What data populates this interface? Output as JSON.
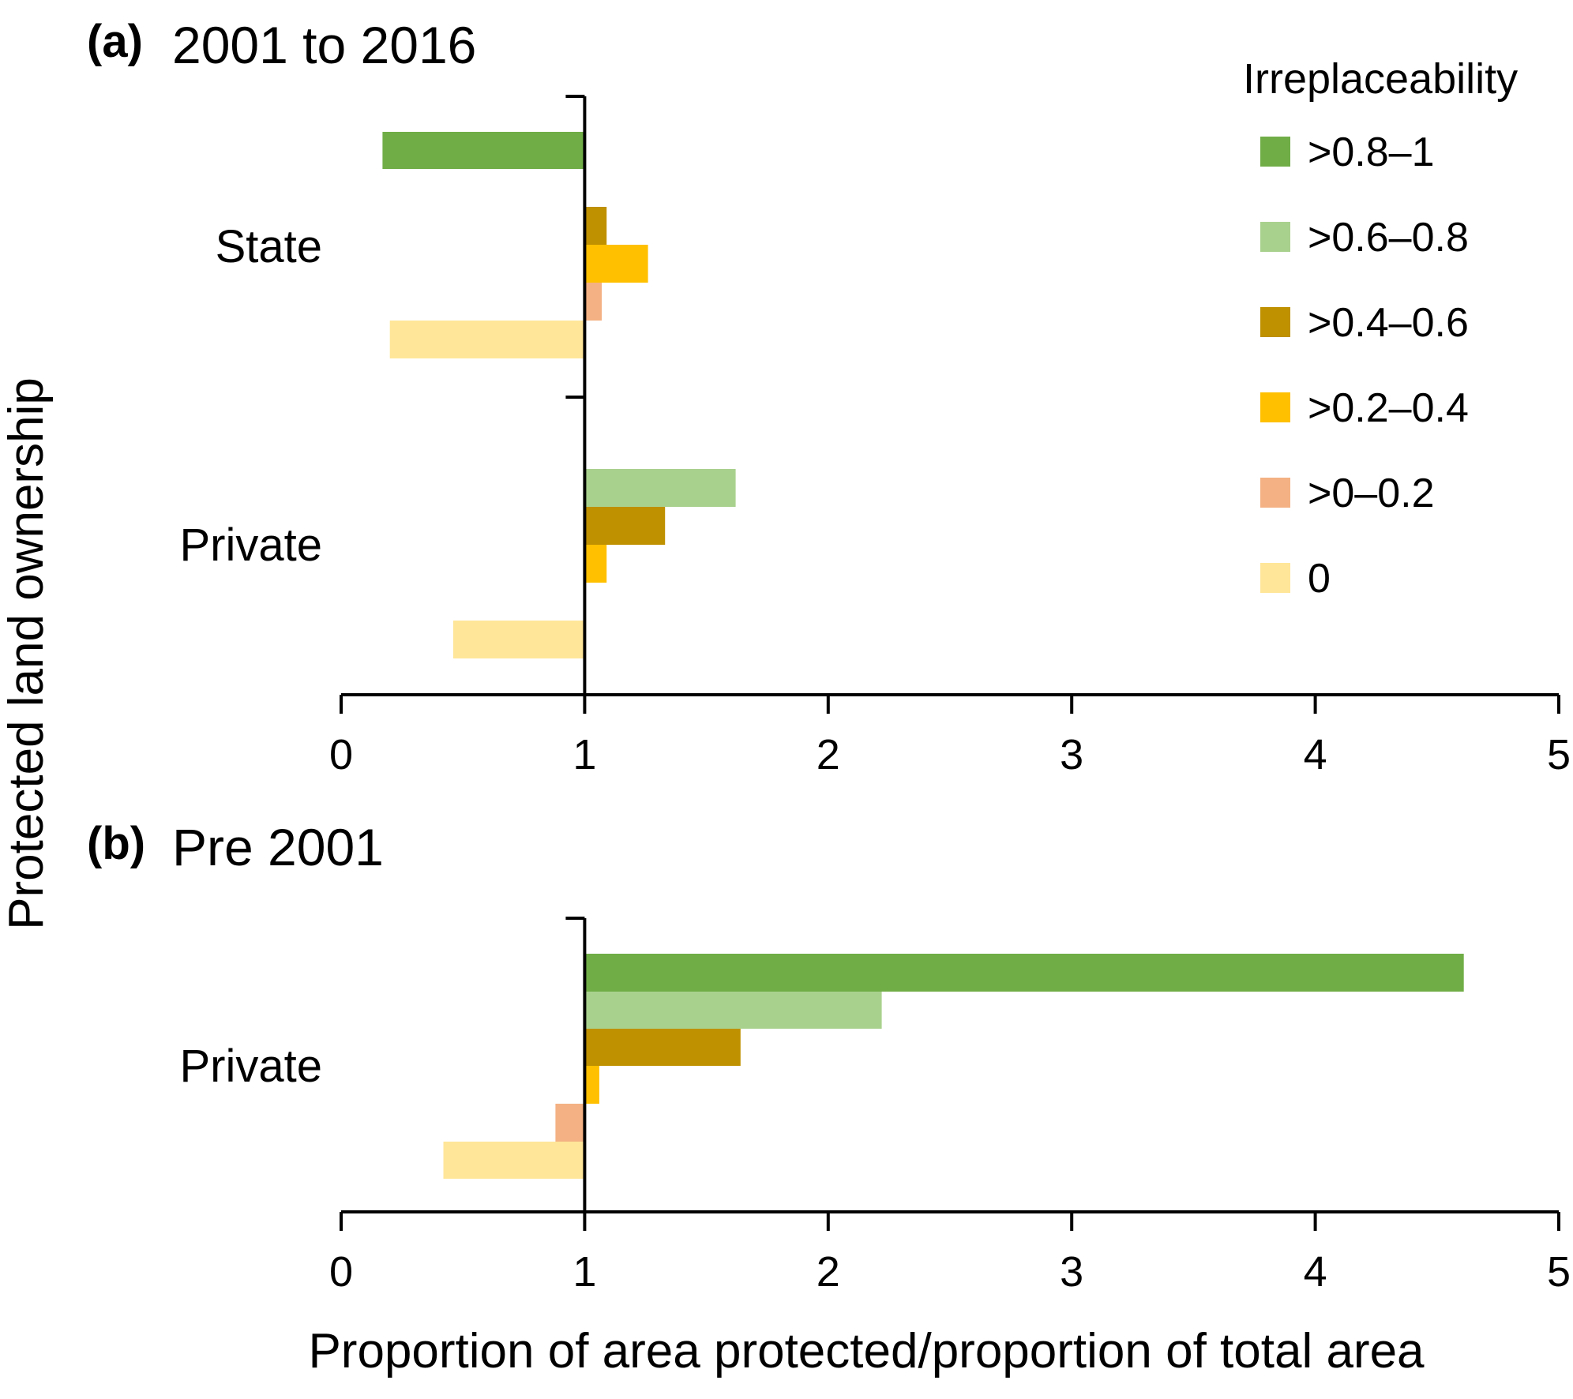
{
  "chart_data": {
    "type": "bar",
    "orientation": "horizontal",
    "ylabel": "Protected land ownership",
    "xlabel": "Proportion of area protected/proportion of total area",
    "legend": {
      "title": "Irreplaceability",
      "placement": "top-right",
      "entries": [
        {
          "label": ">0.8–1",
          "color": "#70ad47"
        },
        {
          "label": ">0.6–0.8",
          "color": "#a9d18e"
        },
        {
          "label": ">0.4–0.6",
          "color": "#bf9000"
        },
        {
          "label": ">0.2–0.4",
          "color": "#ffc000"
        },
        {
          "label": ">0–0.2",
          "color": "#f4b183"
        },
        {
          "label": "0",
          "color": "#ffe699"
        }
      ]
    },
    "panels": [
      {
        "letter": "(a)",
        "title": "2001 to 2016",
        "xlim": [
          0,
          5
        ],
        "xticks": [
          "0",
          "1",
          "2",
          "3",
          "4",
          "5"
        ],
        "categories": [
          "State",
          "Private"
        ],
        "series": [
          {
            "name": ">0.8–1",
            "values": [
              0.17,
              1.0
            ]
          },
          {
            "name": ">0.6–0.8",
            "values": [
              1.0,
              1.62
            ]
          },
          {
            "name": ">0.4–0.6",
            "values": [
              1.09,
              1.33
            ]
          },
          {
            "name": ">0.2–0.4",
            "values": [
              1.26,
              1.09
            ]
          },
          {
            "name": ">0–0.2",
            "values": [
              1.07,
              1.0
            ]
          },
          {
            "name": "0",
            "values": [
              0.2,
              0.46
            ]
          }
        ]
      },
      {
        "letter": "(b)",
        "title": "Pre 2001",
        "xlim": [
          0,
          5
        ],
        "xticks": [
          "0",
          "1",
          "2",
          "3",
          "4",
          "5"
        ],
        "categories": [
          "Private"
        ],
        "series": [
          {
            "name": ">0.8–1",
            "values": [
              4.61
            ]
          },
          {
            "name": ">0.6–0.8",
            "values": [
              2.22
            ]
          },
          {
            "name": ">0.4–0.6",
            "values": [
              1.64
            ]
          },
          {
            "name": ">0.2–0.4",
            "values": [
              1.06
            ]
          },
          {
            "name": ">0–0.2",
            "values": [
              0.88
            ]
          },
          {
            "name": "0",
            "values": [
              0.42
            ]
          }
        ]
      }
    ]
  }
}
